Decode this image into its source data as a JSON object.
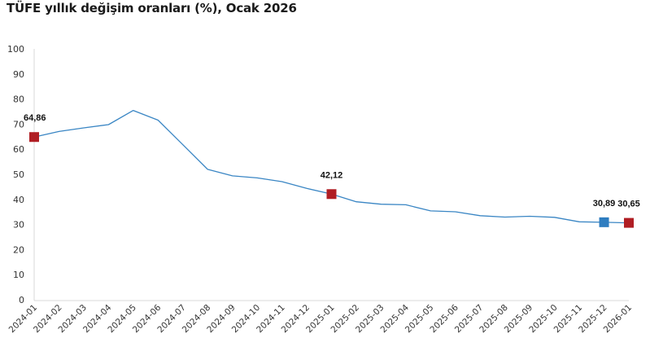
{
  "header": {
    "title": "TÜFE yıllık değişim oranları (%), Ocak 2026"
  },
  "colors": {
    "line": "#3A86C4",
    "marker_red": "#B01E24",
    "marker_blue": "#2E7DC0",
    "axis": "#d9d9d9"
  },
  "chart_data": {
    "type": "line",
    "title": "TÜFE yıllık değişim oranları (%), Ocak 2026",
    "xlabel": "",
    "ylabel": "",
    "ylim": [
      0,
      100
    ],
    "yticks": [
      0,
      10,
      20,
      30,
      40,
      50,
      60,
      70,
      80,
      90,
      100
    ],
    "grid": false,
    "legend": null,
    "categories": [
      "2024-01",
      "2024-02",
      "2024-03",
      "2024-04",
      "2024-05",
      "2024-06",
      "2024-07",
      "2024-08",
      "2024-09",
      "2024-10",
      "2024-11",
      "2024-12",
      "2025-01",
      "2025-02",
      "2025-03",
      "2025-04",
      "2025-05",
      "2025-06",
      "2025-07",
      "2025-08",
      "2025-09",
      "2025-10",
      "2025-11",
      "2025-12",
      "2026-01"
    ],
    "series": [
      {
        "name": "TÜFE yıllık değişim (%)",
        "values": [
          64.86,
          67.07,
          68.5,
          69.8,
          75.45,
          71.6,
          61.78,
          51.97,
          49.38,
          48.58,
          47.09,
          44.38,
          42.12,
          39.05,
          38.1,
          37.86,
          35.41,
          35.05,
          33.52,
          32.95,
          33.29,
          32.87,
          31.07,
          30.89,
          30.65
        ]
      }
    ],
    "annotations": [
      {
        "category": "2024-01",
        "value": 64.86,
        "label": "64,86",
        "marker": "red"
      },
      {
        "category": "2025-01",
        "value": 42.12,
        "label": "42,12",
        "marker": "red"
      },
      {
        "category": "2025-12",
        "value": 30.89,
        "label": "30,89",
        "marker": "blue"
      },
      {
        "category": "2026-01",
        "value": 30.65,
        "label": "30,65",
        "marker": "red"
      }
    ]
  }
}
